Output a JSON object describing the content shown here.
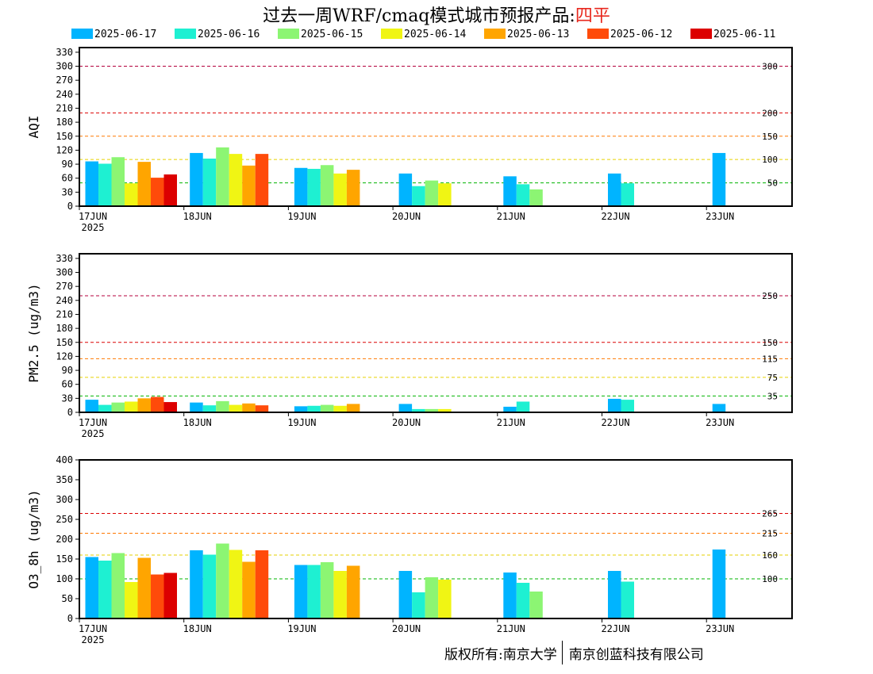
{
  "header": {
    "title_prefix": "过去一周WRF/cmaq模式城市预报产品:",
    "city": "四平"
  },
  "legend": [
    {
      "label": "2025-06-17",
      "color": "#00b4ff"
    },
    {
      "label": "2025-06-16",
      "color": "#1ef0d2"
    },
    {
      "label": "2025-06-15",
      "color": "#8cf573"
    },
    {
      "label": "2025-06-14",
      "color": "#f0f514"
    },
    {
      "label": "2025-06-13",
      "color": "#ffa500"
    },
    {
      "label": "2025-06-12",
      "color": "#ff4b0a"
    },
    {
      "label": "2025-06-11",
      "color": "#dc0000"
    }
  ],
  "footer": {
    "copyright_left": "版权所有:南京大学",
    "copyright_right": "南京创蓝科技有限公司"
  },
  "chart_data": [
    {
      "type": "bar",
      "ylabel": "AQI",
      "ylim": [
        0,
        340
      ],
      "yticks": [
        0,
        30,
        60,
        90,
        120,
        150,
        180,
        210,
        240,
        270,
        300,
        330
      ],
      "x_labels": [
        "17JUN",
        "18JUN",
        "19JUN",
        "20JUN",
        "21JUN",
        "22JUN",
        "23JUN"
      ],
      "year_label": "2025",
      "thresholds": [
        {
          "value": 300,
          "label": "300",
          "color": "#b4003c"
        },
        {
          "value": 200,
          "label": "200",
          "color": "#dc0000"
        },
        {
          "value": 150,
          "label": "150",
          "color": "#ff7800"
        },
        {
          "value": 100,
          "label": "100",
          "color": "#e6d200"
        },
        {
          "value": 50,
          "label": "50",
          "color": "#00b400"
        }
      ],
      "series": [
        {
          "name": "2025-06-17",
          "values": [
            96,
            114,
            82,
            70,
            64,
            70,
            114
          ]
        },
        {
          "name": "2025-06-16",
          "values": [
            91,
            102,
            80,
            43,
            47,
            49,
            null
          ]
        },
        {
          "name": "2025-06-15",
          "values": [
            105,
            126,
            88,
            55,
            36,
            null,
            null
          ]
        },
        {
          "name": "2025-06-14",
          "values": [
            49,
            112,
            70,
            49,
            null,
            null,
            null
          ]
        },
        {
          "name": "2025-06-13",
          "values": [
            95,
            87,
            78,
            null,
            null,
            null,
            null
          ]
        },
        {
          "name": "2025-06-12",
          "values": [
            61,
            112,
            null,
            null,
            null,
            null,
            null
          ]
        },
        {
          "name": "2025-06-11",
          "values": [
            68,
            null,
            null,
            null,
            null,
            null,
            null
          ]
        }
      ]
    },
    {
      "type": "bar",
      "ylabel": "PM2.5 (ug/m3)",
      "ylim": [
        0,
        340
      ],
      "yticks": [
        0,
        30,
        60,
        90,
        120,
        150,
        180,
        210,
        240,
        270,
        300,
        330
      ],
      "x_labels": [
        "17JUN",
        "18JUN",
        "19JUN",
        "20JUN",
        "21JUN",
        "22JUN",
        "23JUN"
      ],
      "year_label": "2025",
      "thresholds": [
        {
          "value": 250,
          "label": "250",
          "color": "#b4003c"
        },
        {
          "value": 150,
          "label": "150",
          "color": "#dc0000"
        },
        {
          "value": 115,
          "label": "115",
          "color": "#ff7800"
        },
        {
          "value": 75,
          "label": "75",
          "color": "#e6d200"
        },
        {
          "value": 35,
          "label": "35",
          "color": "#00b400"
        }
      ],
      "series": [
        {
          "name": "2025-06-17",
          "values": [
            27,
            21,
            13,
            18,
            12,
            29,
            18
          ]
        },
        {
          "name": "2025-06-16",
          "values": [
            16,
            15,
            14,
            7,
            23,
            27,
            null
          ]
        },
        {
          "name": "2025-06-15",
          "values": [
            21,
            24,
            16,
            7,
            0,
            null,
            null
          ]
        },
        {
          "name": "2025-06-14",
          "values": [
            23,
            16,
            14,
            7,
            null,
            null,
            null
          ]
        },
        {
          "name": "2025-06-13",
          "values": [
            30,
            19,
            18,
            null,
            null,
            null,
            null
          ]
        },
        {
          "name": "2025-06-12",
          "values": [
            33,
            15,
            null,
            null,
            null,
            null,
            null
          ]
        },
        {
          "name": "2025-06-11",
          "values": [
            22,
            null,
            null,
            null,
            null,
            null,
            null
          ]
        }
      ]
    },
    {
      "type": "bar",
      "ylabel": "O3_8h (ug/m3)",
      "ylim": [
        0,
        400
      ],
      "yticks": [
        0,
        50,
        100,
        150,
        200,
        250,
        300,
        350,
        400
      ],
      "x_labels": [
        "17JUN",
        "18JUN",
        "19JUN",
        "20JUN",
        "21JUN",
        "22JUN",
        "23JUN"
      ],
      "year_label": "2025",
      "thresholds": [
        {
          "value": 265,
          "label": "265",
          "color": "#dc0000"
        },
        {
          "value": 215,
          "label": "215",
          "color": "#ff7800"
        },
        {
          "value": 160,
          "label": "160",
          "color": "#e6d200"
        },
        {
          "value": 100,
          "label": "100",
          "color": "#00b400"
        }
      ],
      "series": [
        {
          "name": "2025-06-17",
          "values": [
            155,
            172,
            135,
            120,
            116,
            120,
            174
          ]
        },
        {
          "name": "2025-06-16",
          "values": [
            146,
            161,
            135,
            66,
            90,
            93,
            null
          ]
        },
        {
          "name": "2025-06-15",
          "values": [
            165,
            189,
            142,
            104,
            68,
            null,
            null
          ]
        },
        {
          "name": "2025-06-14",
          "values": [
            92,
            173,
            120,
            98,
            null,
            null,
            null
          ]
        },
        {
          "name": "2025-06-13",
          "values": [
            153,
            143,
            133,
            null,
            null,
            null,
            null
          ]
        },
        {
          "name": "2025-06-12",
          "values": [
            111,
            172,
            null,
            null,
            null,
            null,
            null
          ]
        },
        {
          "name": "2025-06-11",
          "values": [
            115,
            null,
            null,
            null,
            null,
            null,
            null
          ]
        }
      ]
    }
  ]
}
